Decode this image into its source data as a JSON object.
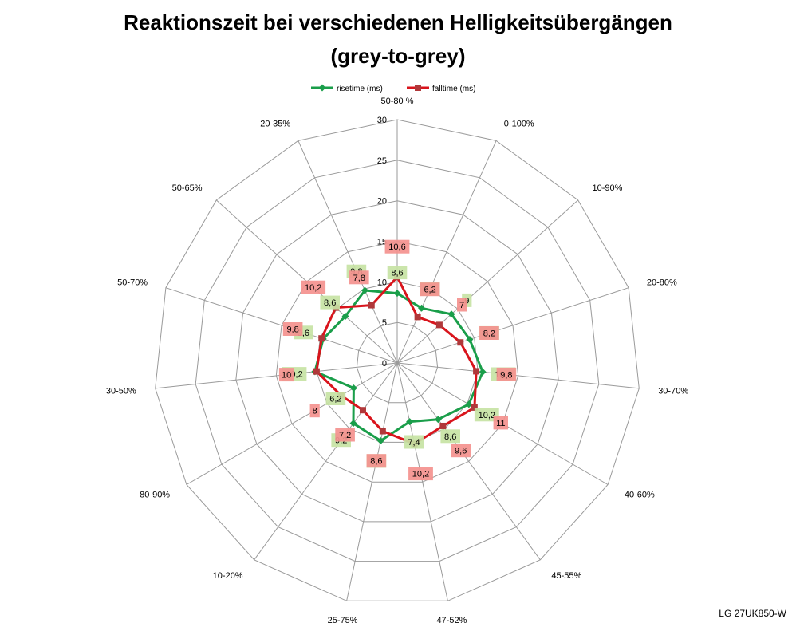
{
  "title_line1": "Reaktionszeit bei verschiedenen Helligkeitsübergängen",
  "title_line2": "(grey-to-grey)",
  "footer": "LG 27UK850-W",
  "colors": {
    "rise_line": "#1a9e4a",
    "fall_line": "#d9141c",
    "rise_label_bg": "#c7e3a4",
    "fall_label_bg": "#f4918e",
    "grid": "#9a9a9a"
  },
  "chart_data": {
    "type": "radar",
    "categories": [
      "50-80 %",
      "0-100%",
      "10-90%",
      "20-80%",
      "30-70%",
      "40-60%",
      "45-55%",
      "47-52%",
      "25-75%",
      "10-20%",
      "80-90%",
      "30-50%",
      "50-70%",
      "50-65%",
      "20-35%"
    ],
    "rlim": [
      0,
      30
    ],
    "ticks": [
      "0",
      "5",
      "10",
      "15",
      "20",
      "25",
      "30"
    ],
    "grid": true,
    "legend_position": "top",
    "series": [
      {
        "name": "risetime (ms)",
        "marker": "diamond",
        "values": [
          8.6,
          7.4,
          9,
          9.4,
          10.6,
          10.2,
          8.6,
          7.4,
          9.8,
          9.2,
          6.2,
          10.2,
          9.6,
          8.6,
          9.8
        ],
        "labels": [
          "8,6",
          "7,4",
          "9",
          "9,4",
          "10,6",
          "10,2",
          "8,6",
          "7,4",
          "9,8",
          "9,2",
          "6,2",
          "10,2",
          "9,6",
          "8,6",
          "9,8"
        ]
      },
      {
        "name": "falltime (ms)",
        "marker": "square",
        "values": [
          10.6,
          6.2,
          7,
          8.2,
          9.8,
          11,
          9.6,
          10.2,
          8.6,
          7.2,
          8,
          10,
          9.8,
          10.2,
          7.8
        ],
        "labels": [
          "10,6",
          "6,2",
          "7",
          "8,2",
          "9,8",
          "11",
          "9,6",
          "10,2",
          "8,6",
          "7,2",
          "8",
          "10",
          "9,8",
          "10,2",
          "7,8"
        ]
      }
    ]
  }
}
